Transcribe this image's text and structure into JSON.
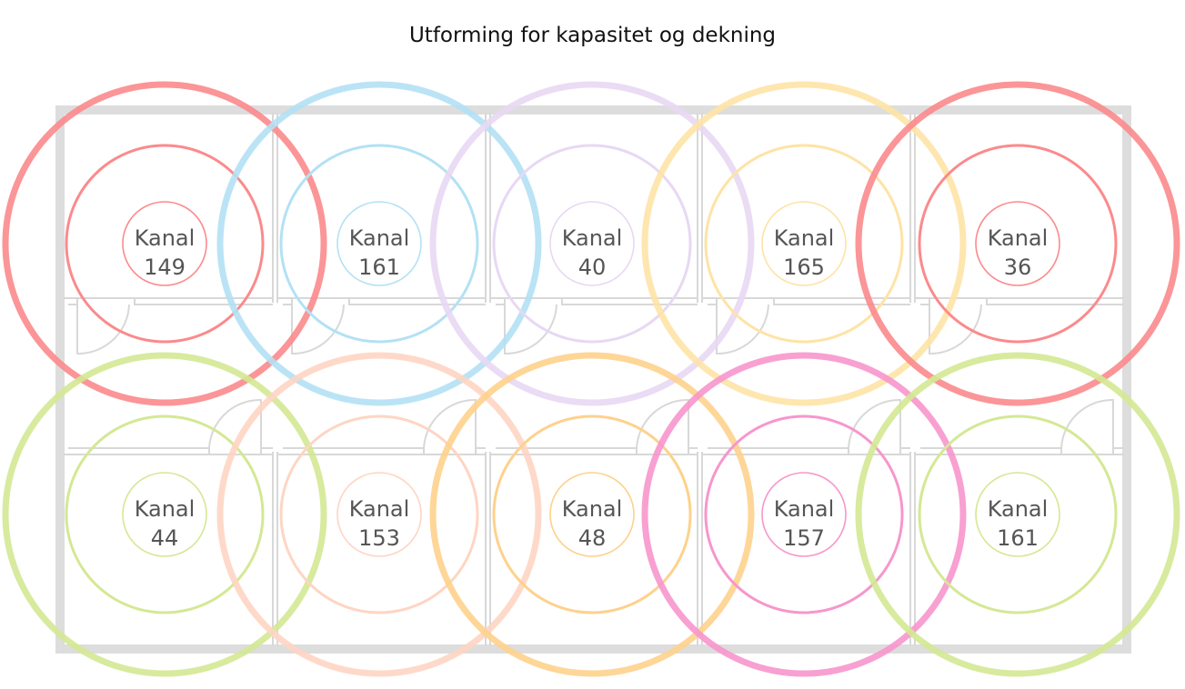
{
  "title": "Utforming for kapasitet og dekning",
  "channel_word": "Kanal",
  "colors": {
    "wall": "#dddddd",
    "room_line": "#d8d8d8",
    "red": "#fb8a8c",
    "blue": "#b3e1f4",
    "purple": "#e8d8f3",
    "yellow": "#fee3a6",
    "green": "#d4e894",
    "peach": "#fed5c3",
    "orange": "#fed18c",
    "pink": "#f796cc"
  },
  "access_points": [
    {
      "row": 1,
      "col": 1,
      "channel": "149",
      "color": "red"
    },
    {
      "row": 1,
      "col": 2,
      "channel": "161",
      "color": "blue"
    },
    {
      "row": 1,
      "col": 3,
      "channel": "40",
      "color": "purple"
    },
    {
      "row": 1,
      "col": 4,
      "channel": "165",
      "color": "yellow"
    },
    {
      "row": 1,
      "col": 5,
      "channel": "36",
      "color": "red"
    },
    {
      "row": 2,
      "col": 1,
      "channel": "44",
      "color": "green"
    },
    {
      "row": 2,
      "col": 2,
      "channel": "153",
      "color": "peach"
    },
    {
      "row": 2,
      "col": 3,
      "channel": "48",
      "color": "orange"
    },
    {
      "row": 2,
      "col": 4,
      "channel": "157",
      "color": "pink"
    },
    {
      "row": 2,
      "col": 5,
      "channel": "161",
      "color": "green"
    }
  ]
}
